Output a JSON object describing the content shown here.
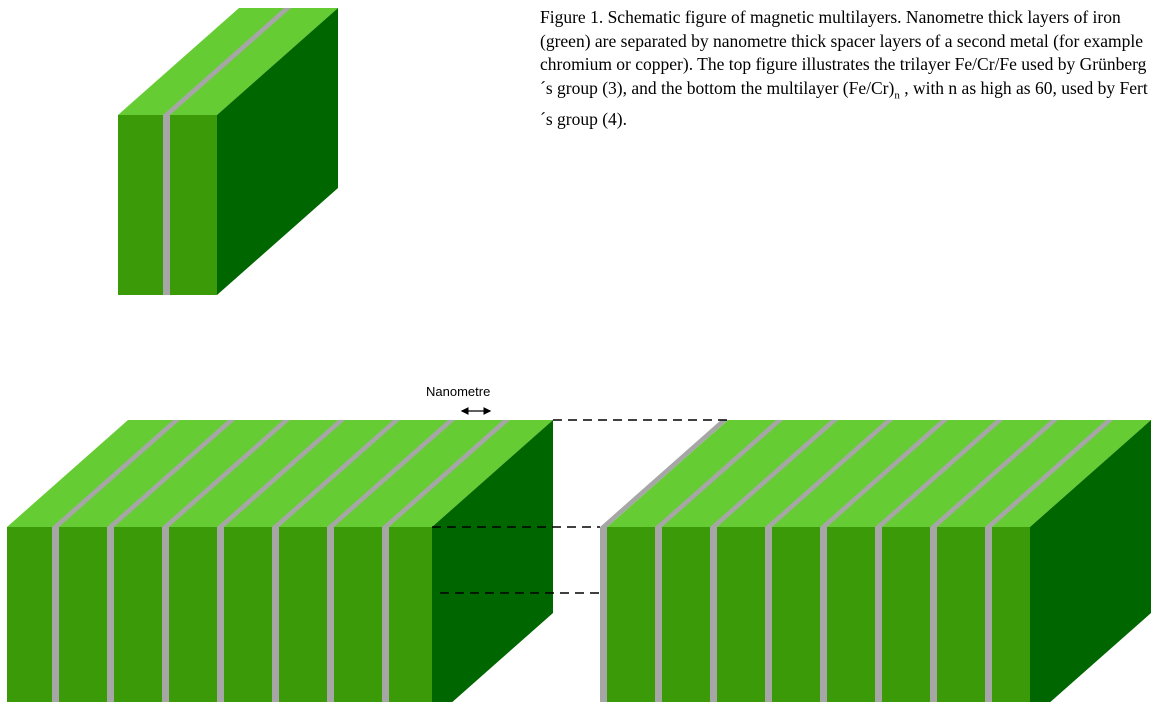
{
  "caption": {
    "text_before": "Figure 1. Schematic figure of magnetic multilayers. Nanometre thick layers of iron (green) are separated by nanometre thick spacer layers of a second metal (for example chromium or copper). The top figure illustrates the trilayer Fe/Cr/Fe used by Grünberg´s group (3), and the bottom the multilayer (Fe/Cr)",
    "subscript": "n",
    "text_after": ", with n as high as 60, used by Fert´s group (4)."
  },
  "scale_label": "Nanometre"
}
